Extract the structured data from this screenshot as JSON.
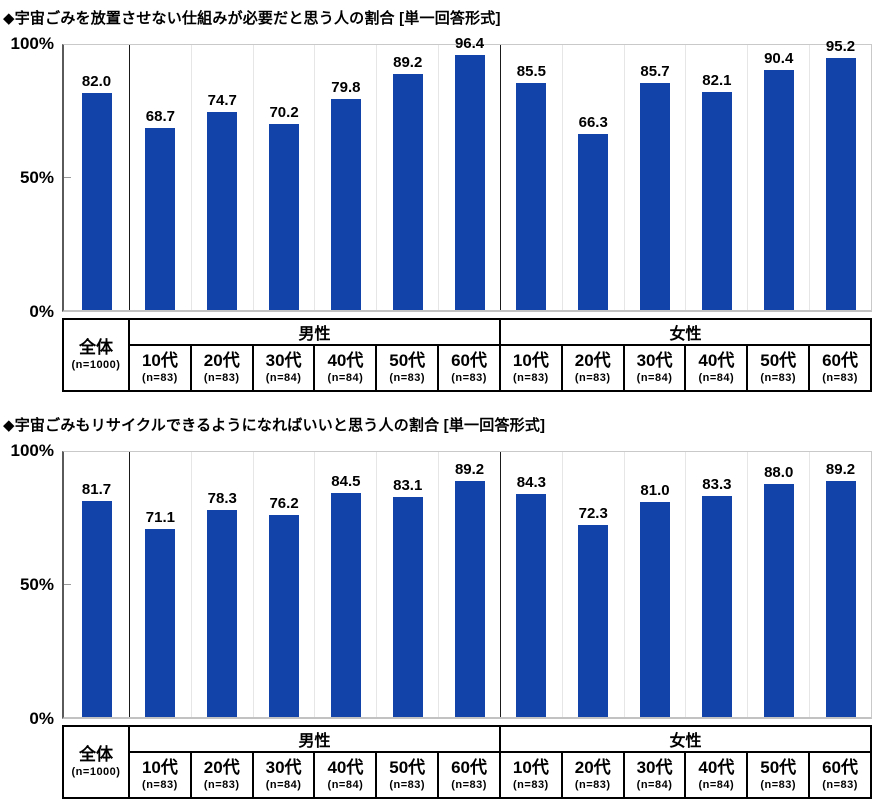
{
  "page": {
    "background": "#ffffff"
  },
  "chart_data": [
    {
      "type": "bar",
      "title": "◆宇宙ごみを放置させない仕組みが必要だと思う人の割合 [単一回答形式]",
      "xlabel": "",
      "ylabel": "",
      "ylim": [
        0,
        100
      ],
      "yticks": [
        "0%",
        "50%",
        "100%"
      ],
      "grid": false,
      "legend": "none",
      "bar_color": "#1243a8",
      "categories": [
        "全体",
        "男性 10代",
        "男性 20代",
        "男性 30代",
        "男性 40代",
        "男性 50代",
        "男性 60代",
        "女性 10代",
        "女性 20代",
        "女性 30代",
        "女性 40代",
        "女性 50代",
        "女性 60代"
      ],
      "values": [
        82.0,
        68.7,
        74.7,
        70.2,
        79.8,
        89.2,
        96.4,
        85.5,
        66.3,
        85.7,
        82.1,
        90.4,
        95.2
      ]
    },
    {
      "type": "bar",
      "title": "◆宇宙ごみもリサイクルできるようになればいいと思う人の割合 [単一回答形式]",
      "xlabel": "",
      "ylabel": "",
      "ylim": [
        0,
        100
      ],
      "yticks": [
        "0%",
        "50%",
        "100%"
      ],
      "grid": false,
      "legend": "none",
      "bar_color": "#1243a8",
      "categories": [
        "全体",
        "男性 10代",
        "男性 20代",
        "男性 30代",
        "男性 40代",
        "男性 50代",
        "男性 60代",
        "女性 10代",
        "女性 20代",
        "女性 30代",
        "女性 40代",
        "女性 50代",
        "女性 60代"
      ],
      "values": [
        81.7,
        71.1,
        78.3,
        76.2,
        84.5,
        83.1,
        89.2,
        84.3,
        72.3,
        81.0,
        83.3,
        88.0,
        89.2
      ]
    }
  ],
  "axis_table": {
    "total": {
      "label": "全体",
      "n": "(n=1000)"
    },
    "groups": [
      {
        "label": "男性",
        "cols": [
          {
            "age": "10代",
            "n": "(n=83)"
          },
          {
            "age": "20代",
            "n": "(n=83)"
          },
          {
            "age": "30代",
            "n": "(n=84)"
          },
          {
            "age": "40代",
            "n": "(n=84)"
          },
          {
            "age": "50代",
            "n": "(n=83)"
          },
          {
            "age": "60代",
            "n": "(n=83)"
          }
        ]
      },
      {
        "label": "女性",
        "cols": [
          {
            "age": "10代",
            "n": "(n=83)"
          },
          {
            "age": "20代",
            "n": "(n=83)"
          },
          {
            "age": "30代",
            "n": "(n=84)"
          },
          {
            "age": "40代",
            "n": "(n=84)"
          },
          {
            "age": "50代",
            "n": "(n=83)"
          },
          {
            "age": "60代",
            "n": "(n=83)"
          }
        ]
      }
    ]
  }
}
